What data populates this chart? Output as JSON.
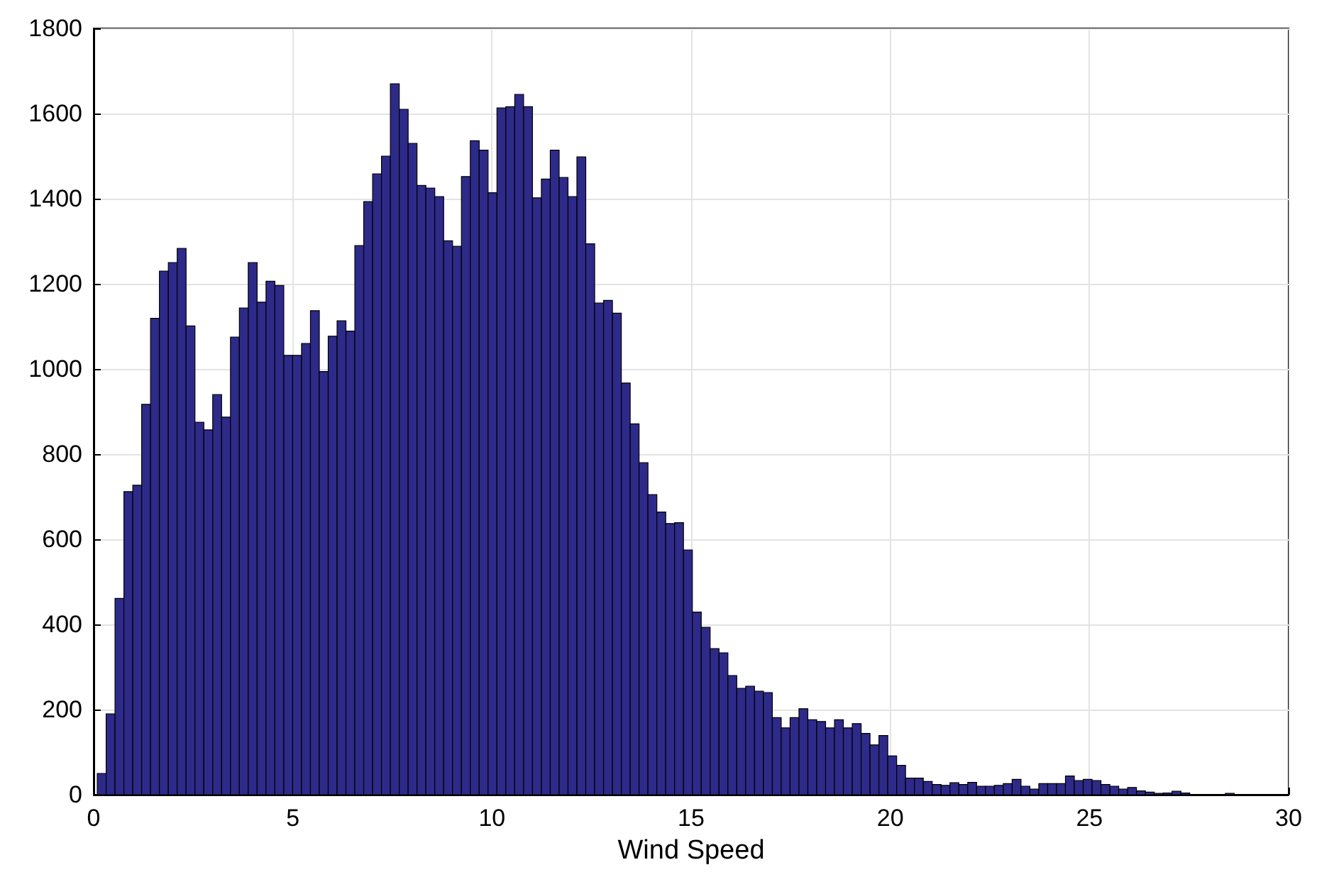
{
  "chart_data": {
    "type": "histogram",
    "xlabel": "Wind Speed",
    "color": "#2e2a8a",
    "bins": [
      0.09,
      0.313,
      0.536,
      0.759,
      0.982,
      1.205,
      1.428,
      1.651,
      1.874,
      2.097,
      2.32,
      2.543,
      2.766,
      2.989,
      3.212,
      3.435,
      3.658,
      3.881,
      4.104,
      4.327,
      4.55,
      4.773,
      4.996,
      5.219,
      5.442,
      5.665,
      5.888,
      6.111,
      6.334,
      6.557,
      6.78,
      7.003,
      7.226,
      7.449,
      7.672,
      7.895,
      8.118,
      8.341,
      8.564,
      8.787,
      9.01,
      9.233,
      9.456,
      9.679,
      9.902,
      10.125,
      10.348,
      10.571,
      10.794,
      11.017,
      11.24,
      11.463,
      11.686,
      11.909,
      12.132,
      12.355,
      12.578,
      12.801,
      13.024,
      13.247,
      13.47,
      13.693,
      13.916,
      14.139,
      14.362,
      14.585,
      14.808,
      15.031,
      15.254,
      15.477,
      15.7,
      15.923,
      16.146,
      16.369,
      16.592,
      16.815,
      17.038,
      17.261,
      17.484,
      17.707,
      17.93,
      18.153,
      18.376,
      18.599,
      18.822,
      19.045,
      19.268,
      19.491,
      19.714,
      19.937,
      20.16,
      20.383,
      20.606,
      20.829,
      21.052,
      21.275,
      21.498,
      21.721,
      21.944,
      22.167,
      22.39,
      22.613,
      22.836,
      23.059,
      23.282,
      23.505,
      23.728,
      23.951,
      24.174,
      24.397,
      24.62,
      24.843,
      25.066,
      25.289,
      25.512,
      25.735,
      25.958,
      26.181,
      26.404,
      26.627,
      26.85,
      27.073,
      27.296,
      27.519,
      27.742,
      27.965,
      28.188,
      28.411,
      28.634,
      28.857,
      29.08
    ],
    "values": [
      50,
      190,
      461,
      712,
      727,
      917,
      1119,
      1230,
      1250,
      1283,
      1101,
      875,
      857,
      940,
      887,
      1075,
      1143,
      1250,
      1157,
      1206,
      1196,
      1032,
      1032,
      1060,
      1137,
      994,
      1077,
      1113,
      1089,
      1290,
      1393,
      1458,
      1500,
      1670,
      1610,
      1530,
      1431,
      1425,
      1405,
      1301,
      1288,
      1452,
      1536,
      1514,
      1414,
      1613,
      1616,
      1645,
      1616,
      1402,
      1446,
      1514,
      1450,
      1405,
      1498,
      1294,
      1155,
      1161,
      1131,
      967,
      871,
      780,
      705,
      664,
      637,
      639,
      575,
      429,
      393,
      343,
      333,
      280,
      250,
      255,
      243,
      240,
      181,
      157,
      181,
      202,
      176,
      172,
      157,
      176,
      157,
      167,
      144,
      117,
      139,
      91,
      69,
      39,
      39,
      31,
      24,
      22,
      28,
      24,
      29,
      20,
      20,
      22,
      26,
      36,
      20,
      13,
      26,
      26,
      26,
      44,
      33,
      36,
      33,
      24,
      20,
      13,
      17,
      9,
      6,
      3,
      4,
      8,
      4,
      null,
      null,
      0,
      null,
      3,
      null,
      null
    ],
    "xlim": [
      0,
      30
    ],
    "xticks": [
      0,
      5,
      10,
      15,
      20,
      25,
      30
    ],
    "ylim": [
      0,
      1800
    ],
    "yticks": [
      0,
      200,
      400,
      600,
      800,
      1000,
      1200,
      1400,
      1600,
      1800
    ],
    "grid": true
  }
}
